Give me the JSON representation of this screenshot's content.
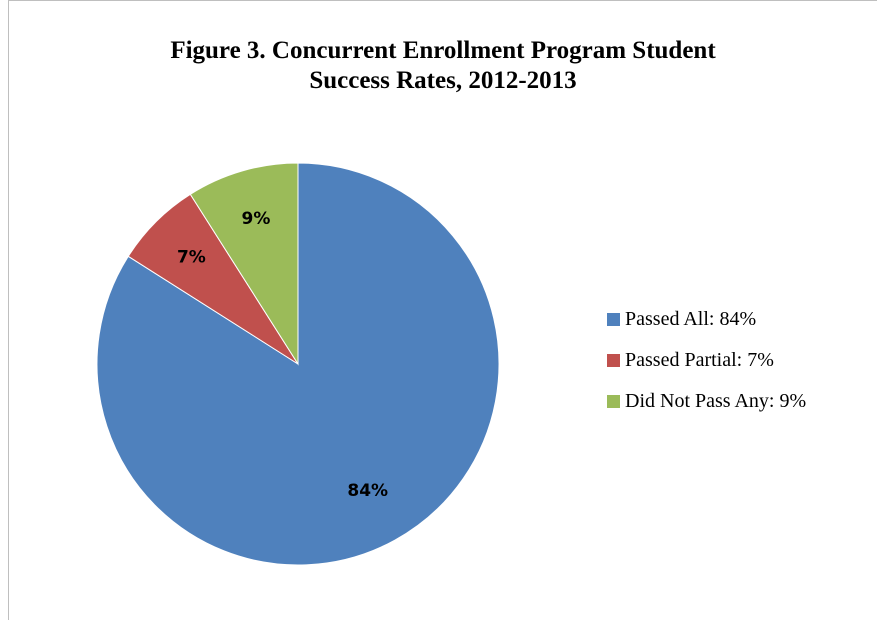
{
  "chart_data": {
    "type": "pie",
    "title_lines": [
      "Figure 3. Concurrent Enrollment Program Student",
      "Success Rates, 2012-2013"
    ],
    "slices": [
      {
        "label": "Passed All",
        "value": 84,
        "data_label": "84%",
        "legend": "Passed All: 84%",
        "color": "#4f81bd"
      },
      {
        "label": "Passed Partial",
        "value": 7,
        "data_label": "7%",
        "legend": "Passed Partial: 7%",
        "color": "#c0504d"
      },
      {
        "label": "Did Not Pass Any",
        "value": 9,
        "data_label": "9%",
        "legend": "Did Not Pass Any: 9%",
        "color": "#9bbb59"
      }
    ],
    "start_angle": "12 o'clock",
    "direction": "clockwise",
    "legend_position": "right"
  }
}
